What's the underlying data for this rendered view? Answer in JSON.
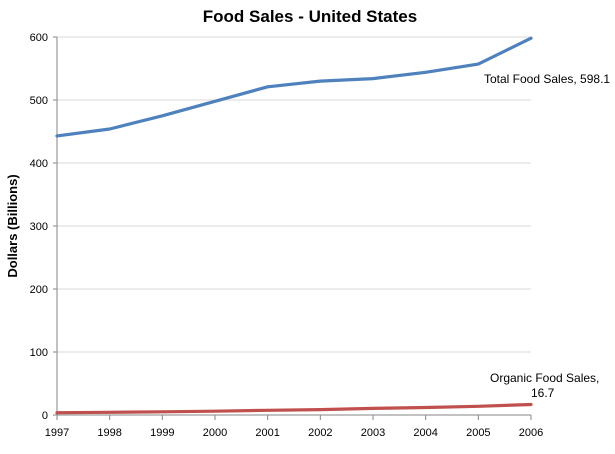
{
  "chart_data": {
    "type": "line",
    "title": "Food Sales - United States",
    "xlabel": "",
    "ylabel": "Dollars (Billions)",
    "x": [
      "1997",
      "1998",
      "1999",
      "2000",
      "2001",
      "2002",
      "2003",
      "2004",
      "2005",
      "2006"
    ],
    "ylim": [
      0,
      600
    ],
    "yticks": [
      "0",
      "100",
      "200",
      "300",
      "400",
      "500",
      "600"
    ],
    "grid": true,
    "legend": "none",
    "series": [
      {
        "name": "Total Food Sales",
        "color": "#4f81bd",
        "values": [
          443,
          454,
          475,
          498,
          521,
          530,
          534,
          544,
          557,
          598.1
        ],
        "label_lines": [
          "Total Food Sales, 598.1"
        ]
      },
      {
        "name": "Organic Food Sales",
        "color": "#c0504d",
        "values": [
          3.6,
          4.3,
          5.1,
          6.1,
          7.4,
          8.6,
          10.4,
          11.9,
          13.8,
          16.7
        ],
        "label_lines": [
          "Organic Food Sales,",
          "16.7"
        ]
      }
    ]
  }
}
